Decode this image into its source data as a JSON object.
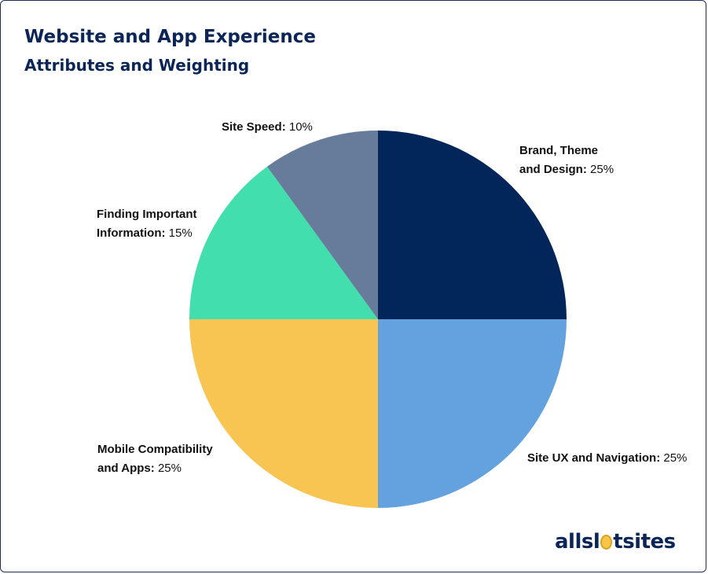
{
  "header": {
    "title": "Website and App Experience",
    "subtitle": "Attributes and Weighting"
  },
  "chart_data": {
    "type": "pie",
    "title": "Website and App Experience",
    "subtitle": "Attributes and Weighting",
    "legend": "none",
    "slices": [
      {
        "name_lines": [
          "Brand, Theme",
          "and Design:"
        ],
        "label": "Brand, Theme and Design",
        "value": 25,
        "value_label": "25%",
        "color": "#02255a"
      },
      {
        "name_lines": [
          "Site UX and Navigation:"
        ],
        "label": "Site UX and Navigation",
        "value": 25,
        "value_label": "25%",
        "color": "#64a1df"
      },
      {
        "name_lines": [
          "Mobile Compatibility",
          "and Apps:"
        ],
        "label": "Mobile Compatibility and Apps",
        "value": 25,
        "value_label": "25%",
        "color": "#f8c553"
      },
      {
        "name_lines": [
          "Finding Important",
          "Information:"
        ],
        "label": "Finding Important Information",
        "value": 15,
        "value_label": "15%",
        "color": "#43deae"
      },
      {
        "name_lines": [
          "Site Speed:"
        ],
        "label": "Site Speed",
        "value": 10,
        "value_label": "10%",
        "color": "#677b9a"
      }
    ]
  },
  "logo": {
    "part1": "allsl",
    "part2": "tsites",
    "coin_color": "#f7c548"
  }
}
